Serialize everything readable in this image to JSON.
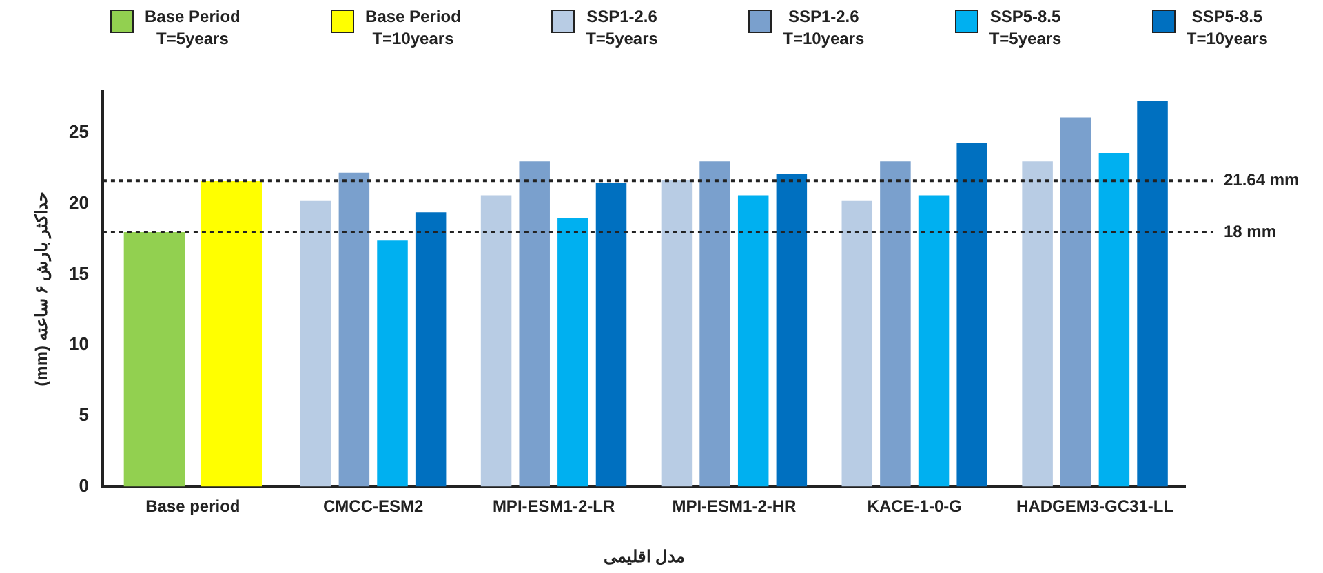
{
  "chart_data": {
    "type": "bar",
    "xlabel": "مدل اقلیمی",
    "ylabel": "حداکثر بارش ۶ ساعته (mm)",
    "categories": [
      "Base period",
      "CMCC-ESM2",
      "MPI-ESM1-2-LR",
      "MPI-ESM1-2-HR",
      "KACE-1-0-G",
      "HADGEM3-GC31-LL"
    ],
    "series": [
      {
        "name": "Base Period T=5years",
        "color": "#92d050",
        "values": [
          18.0,
          null,
          null,
          null,
          null,
          null
        ]
      },
      {
        "name": "Base Period T=10years",
        "color": "#ffff00",
        "values": [
          21.6,
          null,
          null,
          null,
          null,
          null
        ]
      },
      {
        "name": "SSP1-2.6 T=5years",
        "color": "#b8cce4",
        "values": [
          null,
          20.2,
          20.6,
          21.7,
          20.2,
          23.0
        ]
      },
      {
        "name": "SSP1-2.6 T=10years",
        "color": "#7aa0cd",
        "values": [
          null,
          22.2,
          23.0,
          23.0,
          23.0,
          26.1
        ]
      },
      {
        "name": "SSP5-8.5 T=5years",
        "color": "#00b0f0",
        "values": [
          null,
          17.4,
          19.0,
          20.6,
          20.6,
          23.6
        ]
      },
      {
        "name": "SSP5-8.5 T=10years",
        "color": "#0070c0",
        "values": [
          null,
          19.4,
          21.5,
          22.1,
          24.3,
          27.3
        ]
      }
    ],
    "ylim": [
      0,
      28
    ],
    "yticks": [
      0,
      5,
      10,
      15,
      20,
      25
    ],
    "grid": false,
    "legend": "top",
    "ref_lines": [
      {
        "axis": "y",
        "value": 21.64,
        "label": "21.64 mm",
        "line_style": "dotted"
      },
      {
        "axis": "y",
        "value": 18,
        "label": "18 mm",
        "line_style": "dotted"
      }
    ]
  }
}
